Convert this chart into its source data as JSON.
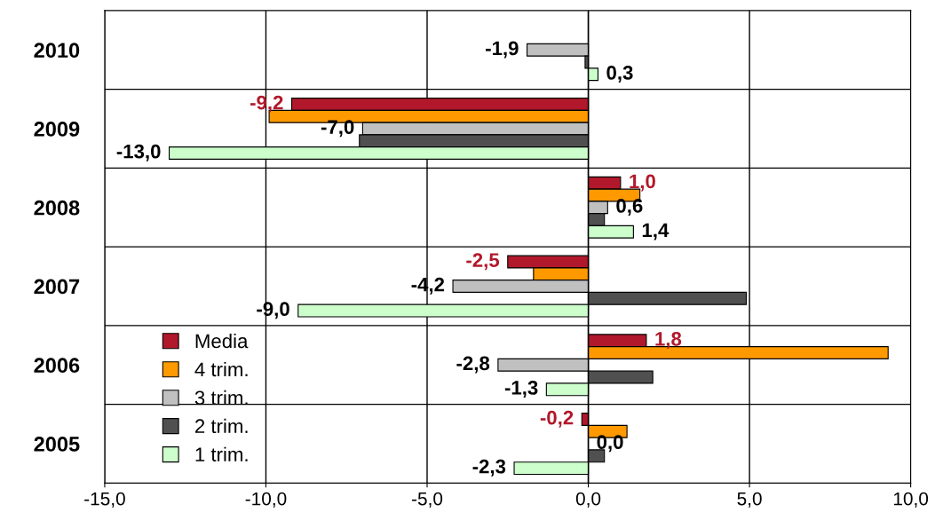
{
  "chart_data": {
    "type": "bar",
    "orientation": "horizontal",
    "categories": [
      "2010",
      "2009",
      "2008",
      "2007",
      "2006",
      "2005"
    ],
    "series": [
      {
        "name": "Media",
        "color": "#b2182b",
        "values": [
          null,
          -9.2,
          1.0,
          -2.5,
          1.8,
          -0.2
        ],
        "value_labels": [
          null,
          "-9,2",
          "1,0",
          "-2,5",
          "1,8",
          "-0,2"
        ]
      },
      {
        "name": "4 trim.",
        "color": "#ff9900",
        "values": [
          null,
          -9.9,
          1.6,
          -1.7,
          9.3,
          1.2
        ]
      },
      {
        "name": "3 trim.",
        "color": "#c0c0c0",
        "values": [
          -1.9,
          -7.0,
          0.6,
          -4.2,
          -2.8,
          0.0
        ],
        "value_labels": [
          "-1,9",
          "-7,0",
          "0,6",
          "-4,2",
          "-2,8",
          "0,0"
        ]
      },
      {
        "name": "2 trim.",
        "color": "#505050",
        "values": [
          -0.1,
          -7.1,
          0.5,
          4.9,
          2.0,
          0.5
        ]
      },
      {
        "name": "1 trim.",
        "color": "#ccffcc",
        "values": [
          0.3,
          -13.0,
          1.4,
          -9.0,
          -1.3,
          -2.3
        ],
        "value_labels": [
          "0,3",
          "-13,0",
          "1,4",
          "-9,0",
          "-1,3",
          "-2,3"
        ]
      }
    ],
    "xlim": [
      -15,
      10
    ],
    "xticks": [
      {
        "value": -15,
        "label": "-15,0"
      },
      {
        "value": -10,
        "label": "-10,0"
      },
      {
        "value": -5,
        "label": "-5,0"
      },
      {
        "value": 0,
        "label": "0,0"
      },
      {
        "value": 5,
        "label": "5,0"
      },
      {
        "value": 10,
        "label": "10,0"
      }
    ],
    "grid": true,
    "legend": "bottom left"
  }
}
